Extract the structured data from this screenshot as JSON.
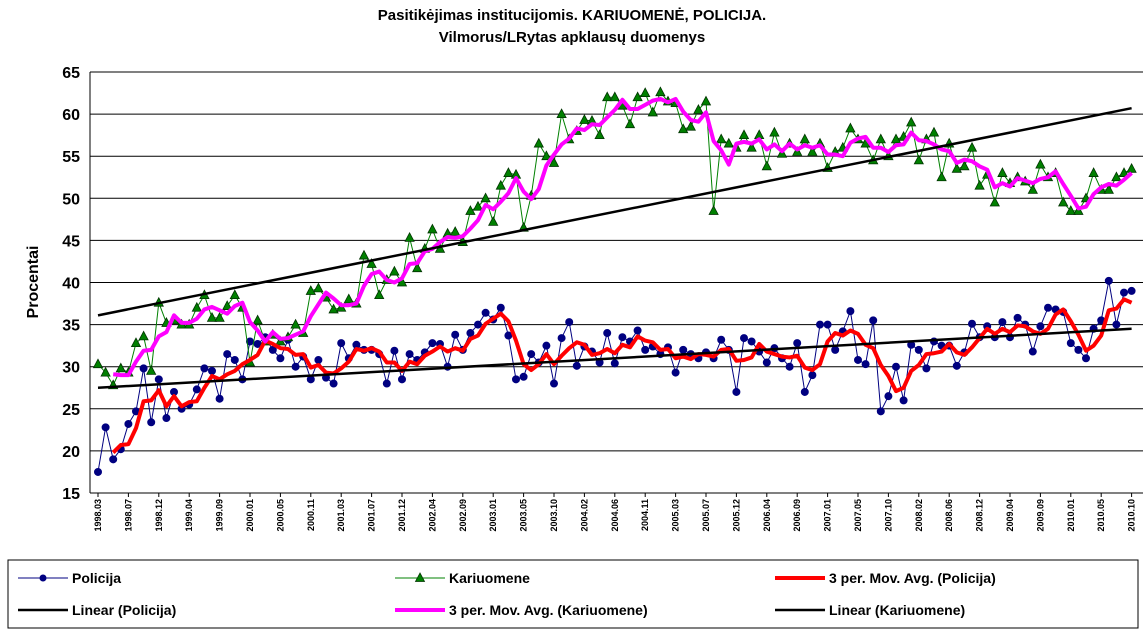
{
  "chart_data": {
    "type": "line",
    "title": "Pasitikėjimas institucijomis. KARIUOMENĖ, POLICIJA.",
    "subtitle": "Vilmorus/LRytas apklausų duomenys",
    "y_label": "Procentai",
    "ylim": [
      15,
      65
    ],
    "yticks": [
      15,
      20,
      25,
      30,
      35,
      40,
      45,
      50,
      55,
      60,
      65
    ],
    "grid": true,
    "categories": [
      "1998.03",
      null,
      null,
      null,
      "1998.07",
      null,
      null,
      null,
      "1998.12",
      null,
      null,
      null,
      "1999.04",
      null,
      null,
      null,
      "1999.09",
      null,
      null,
      null,
      "2000.01",
      null,
      null,
      null,
      "2000.05",
      null,
      null,
      null,
      "2000.11",
      null,
      null,
      null,
      "2001.03",
      null,
      null,
      null,
      "2001.07",
      null,
      null,
      null,
      "2001.12",
      null,
      null,
      null,
      "2002.04",
      null,
      null,
      null,
      "2002.09",
      null,
      null,
      null,
      "2003.01",
      null,
      null,
      null,
      "2003.05",
      null,
      null,
      null,
      "2003.10",
      null,
      null,
      null,
      "2004.02",
      null,
      null,
      null,
      "2004.06",
      null,
      null,
      null,
      "2004.11",
      null,
      null,
      null,
      "2005.03",
      null,
      null,
      null,
      "2005.07",
      null,
      null,
      null,
      "2005.12",
      null,
      null,
      null,
      "2006.04",
      null,
      null,
      null,
      "2006.09",
      null,
      null,
      null,
      "2007.01",
      null,
      null,
      null,
      "2007.05",
      null,
      null,
      null,
      "2007.10",
      null,
      null,
      null,
      "2008.02",
      null,
      null,
      null,
      "2008.06",
      null,
      null,
      null,
      "2008.12",
      null,
      null,
      null,
      "2009.04",
      null,
      null,
      null,
      "2009.09",
      null,
      null,
      null,
      "2010.01",
      null,
      null,
      null,
      "2010.05",
      null,
      null,
      null,
      "2010.10"
    ],
    "series": [
      {
        "name": "Policija",
        "color": "#000080",
        "marker": "circle",
        "width": 1,
        "values": [
          17.5,
          22.8,
          19.0,
          20.2,
          23.2,
          24.7,
          29.8,
          23.4,
          28.5,
          23.9,
          27.0,
          25.0,
          25.5,
          27.3,
          29.8,
          29.5,
          26.2,
          31.5,
          30.8,
          28.5,
          33.0,
          32.7,
          33.5,
          32.0,
          31.0,
          33.2,
          30.0,
          31.2,
          28.5,
          30.8,
          28.7,
          28.0,
          32.8,
          31.0,
          32.6,
          32.0,
          32.0,
          31.5,
          28.0,
          31.9,
          28.5,
          31.5,
          30.8,
          31.7,
          32.8,
          32.7,
          30.0,
          33.8,
          32.0,
          34.0,
          35.0,
          36.4,
          35.6,
          37.0,
          33.7,
          28.5,
          28.8,
          31.5,
          30.5,
          32.5,
          28.0,
          33.4,
          35.3,
          30.1,
          32.4,
          31.8,
          30.5,
          34.0,
          30.4,
          33.5,
          33.0,
          34.3,
          32.0,
          32.4,
          31.5,
          32.3,
          29.3,
          32.0,
          31.5,
          31.0,
          31.7,
          31.0,
          33.2,
          32.0,
          27.0,
          33.4,
          33.0,
          31.8,
          30.5,
          32.2,
          31.0,
          30.0,
          32.8,
          27.0,
          29.0,
          35.0,
          35.0,
          32.0,
          34.2,
          36.6,
          30.8,
          30.3,
          35.5,
          24.7,
          26.5,
          30.0,
          26.0,
          32.6,
          32.0,
          29.8,
          33.0,
          32.5,
          32.5,
          30.1,
          31.7,
          35.1,
          33.5,
          34.8,
          33.5,
          35.3,
          33.5,
          35.8,
          35.0,
          31.8,
          34.8,
          37.0,
          36.8,
          36.5,
          32.8,
          32.0,
          31.0,
          34.5,
          35.5,
          40.2,
          35.0,
          38.8,
          39.0
        ]
      },
      {
        "name": "Kariuomene",
        "color": "#008000",
        "marker": "triangle",
        "width": 1,
        "values": [
          30.3,
          29.3,
          27.8,
          29.8,
          29.3,
          32.8,
          33.6,
          29.5,
          37.6,
          35.2,
          35.5,
          35.0,
          35.0,
          37.0,
          38.5,
          35.8,
          35.8,
          37.2,
          38.5,
          37.0,
          30.5,
          35.5,
          33.0,
          33.8,
          33.0,
          33.5,
          35.0,
          34.0,
          39.0,
          39.3,
          38.2,
          36.8,
          37.0,
          38.0,
          37.5,
          43.2,
          42.2,
          38.5,
          40.3,
          41.3,
          40.0,
          45.3,
          41.7,
          44.0,
          46.3,
          44.0,
          45.8,
          46.0,
          44.8,
          48.5,
          49.0,
          50.0,
          47.2,
          51.5,
          53.0,
          52.8,
          46.5,
          50.3,
          56.5,
          55.0,
          54.2,
          60.0,
          57.0,
          58.0,
          59.3,
          59.2,
          57.5,
          62.0,
          62.0,
          61.0,
          58.8,
          62.0,
          62.5,
          60.2,
          62.6,
          61.5,
          61.3,
          58.2,
          58.5,
          60.5,
          61.5,
          48.5,
          57.0,
          56.5,
          56.0,
          57.5,
          56.0,
          57.5,
          53.8,
          57.8,
          55.3,
          56.5,
          55.5,
          57.0,
          55.5,
          56.5,
          53.6,
          55.5,
          56.0,
          58.3,
          57.0,
          56.5,
          54.5,
          57.0,
          55.0,
          57.0,
          57.3,
          59.0,
          54.5,
          57.0,
          57.8,
          52.5,
          56.5,
          53.5,
          53.8,
          56.0,
          51.5,
          52.8,
          49.5,
          53.0,
          51.8,
          52.5,
          52.0,
          51.0,
          54.0,
          52.5,
          53.0,
          49.5,
          48.5,
          48.5,
          50.0,
          53.0,
          51.0,
          51.0,
          52.5,
          53.0,
          53.5
        ]
      },
      {
        "name": "3 per. Mov. Avg. (Policija)",
        "color": "#ff0000",
        "width": 4,
        "values": [
          null,
          null,
          19.8,
          20.7,
          20.8,
          22.7,
          25.9,
          26.0,
          27.2,
          25.3,
          26.5,
          25.3,
          25.8,
          25.9,
          27.5,
          28.9,
          28.5,
          29.1,
          29.5,
          30.3,
          30.8,
          31.4,
          33.1,
          32.7,
          32.2,
          32.1,
          31.4,
          31.5,
          29.9,
          30.2,
          29.3,
          29.2,
          29.8,
          30.6,
          32.1,
          31.9,
          32.2,
          31.8,
          30.5,
          30.5,
          29.5,
          30.6,
          30.3,
          31.3,
          31.8,
          32.4,
          31.8,
          32.2,
          31.9,
          33.3,
          33.7,
          35.1,
          35.7,
          36.3,
          35.4,
          33.1,
          30.3,
          29.6,
          30.3,
          31.5,
          30.3,
          31.3,
          32.2,
          32.9,
          32.6,
          31.4,
          31.6,
          32.1,
          31.6,
          32.6,
          32.3,
          33.6,
          33.1,
          32.9,
          32.0,
          32.1,
          31.0,
          31.2,
          30.9,
          31.5,
          31.4,
          31.2,
          32.0,
          32.1,
          30.7,
          30.8,
          31.1,
          32.7,
          31.8,
          31.5,
          31.2,
          31.1,
          31.3,
          29.9,
          29.6,
          30.3,
          33.0,
          34.0,
          33.7,
          34.3,
          33.9,
          32.6,
          32.2,
          30.2,
          28.9,
          27.1,
          27.5,
          29.5,
          30.2,
          31.5,
          31.6,
          31.8,
          32.7,
          31.7,
          31.4,
          32.3,
          33.4,
          34.5,
          33.9,
          34.5,
          34.1,
          34.9,
          34.8,
          34.2,
          33.9,
          34.5,
          36.2,
          36.8,
          35.4,
          33.8,
          31.9,
          32.5,
          33.7,
          36.7,
          36.9,
          38.0,
          37.6
        ]
      },
      {
        "name": "Linear (Policija)",
        "color": "#000000",
        "width": 2.5,
        "x": [
          "1998.03",
          "2010.10"
        ],
        "values": [
          27.5,
          34.5
        ]
      },
      {
        "name": "3 per. Mov. Avg. (Kariuomene)",
        "color": "#ff00ff",
        "width": 4,
        "values": [
          null,
          null,
          29.1,
          29.0,
          29.0,
          30.6,
          31.9,
          32.0,
          33.6,
          34.1,
          36.1,
          35.2,
          35.2,
          35.7,
          36.8,
          37.1,
          36.7,
          36.3,
          37.2,
          37.6,
          35.3,
          34.3,
          33.0,
          34.1,
          33.3,
          33.4,
          33.8,
          34.2,
          36.0,
          37.4,
          38.8,
          38.1,
          37.3,
          37.3,
          37.5,
          39.6,
          41.0,
          41.3,
          40.3,
          40.0,
          40.5,
          42.2,
          42.3,
          43.7,
          44.0,
          44.8,
          45.4,
          45.3,
          45.5,
          46.4,
          47.4,
          49.2,
          48.7,
          49.6,
          50.6,
          52.4,
          50.8,
          49.9,
          51.1,
          53.9,
          55.2,
          56.4,
          57.1,
          58.3,
          58.1,
          58.8,
          58.7,
          59.6,
          60.5,
          61.7,
          60.6,
          60.6,
          61.1,
          61.6,
          61.8,
          61.4,
          61.8,
          60.3,
          59.3,
          59.1,
          60.2,
          56.8,
          55.7,
          54.0,
          56.5,
          56.7,
          56.5,
          57.0,
          55.8,
          56.4,
          55.6,
          56.5,
          55.8,
          56.3,
          56.0,
          56.3,
          55.2,
          55.2,
          55.0,
          56.6,
          57.1,
          57.3,
          56.0,
          56.0,
          55.5,
          56.3,
          56.4,
          57.8,
          56.9,
          56.8,
          56.4,
          55.8,
          55.6,
          54.2,
          54.6,
          54.4,
          53.8,
          53.4,
          51.3,
          51.8,
          51.4,
          52.4,
          52.1,
          51.8,
          52.3,
          52.5,
          53.2,
          51.7,
          50.3,
          48.8,
          49.0,
          50.5,
          51.3,
          51.7,
          51.5,
          52.2,
          53.0
        ]
      },
      {
        "name": "Linear (Kariuomene)",
        "color": "#000000",
        "width": 2.5,
        "x": [
          "1998.03",
          "2010.10"
        ],
        "values": [
          36.1,
          60.7
        ]
      }
    ]
  }
}
